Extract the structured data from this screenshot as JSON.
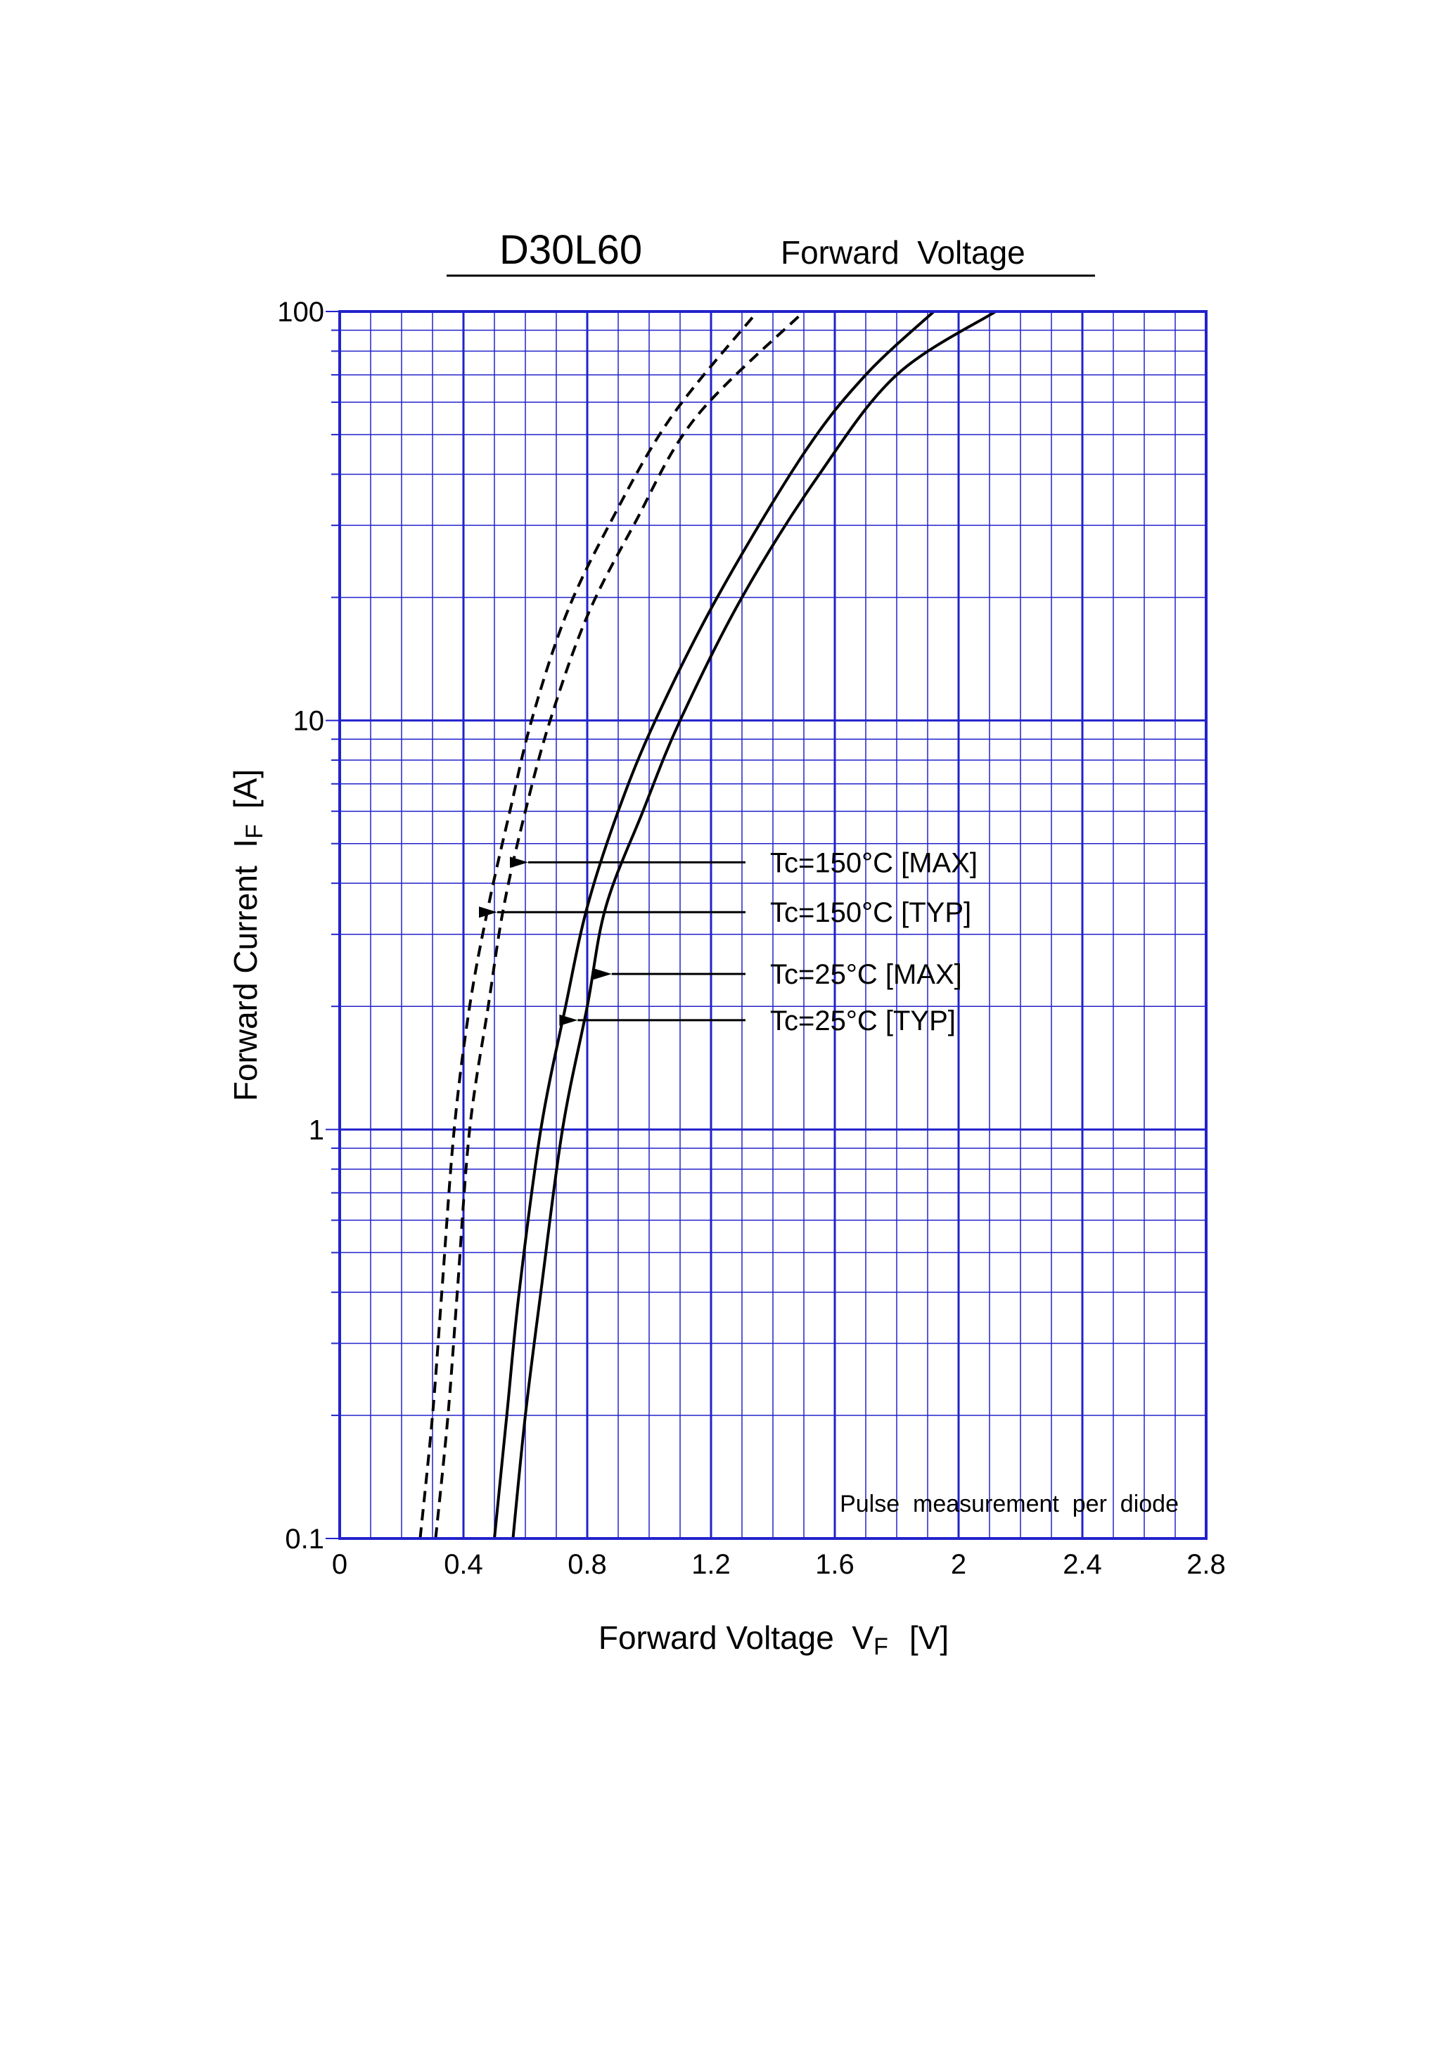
{
  "header": {
    "part_number": "D30L60",
    "subtitle": "Forward  Voltage"
  },
  "chart_data": {
    "type": "line",
    "title": "D30L60",
    "subtitle": "Forward  Voltage",
    "xlabel": {
      "main": "Forward Voltage  V",
      "sub": "F",
      "unit": "[V]"
    },
    "ylabel": {
      "main": "Forward Current  I",
      "sub": "F",
      "unit": "[A]"
    },
    "xlim": [
      0,
      2.8
    ],
    "ylim": [
      0.1,
      100
    ],
    "yscale": "log",
    "grid": true,
    "x_ticks": [
      "0",
      "0.4",
      "0.8",
      "1.2",
      "1.6",
      "2",
      "2.4",
      "2.8"
    ],
    "y_ticks": [
      "0.1",
      "1",
      "10",
      "100"
    ],
    "note": "Pulse  measurement  per  diode",
    "colors": {
      "grid": "#2222cc",
      "curve": "#000000"
    },
    "series": [
      {
        "name": "Tc=150°C [MAX]",
        "style": "dashed",
        "points": [
          [
            0.31,
            0.1
          ],
          [
            0.35,
            0.2
          ],
          [
            0.38,
            0.4
          ],
          [
            0.42,
            1
          ],
          [
            0.48,
            2
          ],
          [
            0.53,
            3.5
          ],
          [
            0.6,
            6
          ],
          [
            0.68,
            10
          ],
          [
            0.8,
            18
          ],
          [
            0.95,
            30
          ],
          [
            1.15,
            55
          ],
          [
            1.5,
            100
          ]
        ]
      },
      {
        "name": "Tc=150°C [TYP]",
        "style": "dashed",
        "points": [
          [
            0.26,
            0.1
          ],
          [
            0.3,
            0.2
          ],
          [
            0.33,
            0.4
          ],
          [
            0.37,
            1
          ],
          [
            0.42,
            2
          ],
          [
            0.48,
            3.5
          ],
          [
            0.55,
            6
          ],
          [
            0.62,
            10
          ],
          [
            0.73,
            18
          ],
          [
            0.87,
            30
          ],
          [
            1.07,
            55
          ],
          [
            1.35,
            100
          ]
        ]
      },
      {
        "name": "Tc=25°C [MAX]",
        "style": "solid",
        "points": [
          [
            0.56,
            0.1
          ],
          [
            0.6,
            0.2
          ],
          [
            0.65,
            0.4
          ],
          [
            0.72,
            1
          ],
          [
            0.8,
            2
          ],
          [
            0.86,
            3.5
          ],
          [
            0.98,
            6
          ],
          [
            1.1,
            10
          ],
          [
            1.3,
            20
          ],
          [
            1.55,
            40
          ],
          [
            1.8,
            70
          ],
          [
            2.12,
            100
          ]
        ]
      },
      {
        "name": "Tc=25°C [TYP]",
        "style": "solid",
        "points": [
          [
            0.5,
            0.1
          ],
          [
            0.54,
            0.2
          ],
          [
            0.58,
            0.4
          ],
          [
            0.65,
            1
          ],
          [
            0.73,
            2
          ],
          [
            0.8,
            3.5
          ],
          [
            0.9,
            6
          ],
          [
            1.02,
            10
          ],
          [
            1.22,
            20
          ],
          [
            1.5,
            45
          ],
          [
            1.7,
            70
          ],
          [
            1.92,
            100
          ]
        ]
      }
    ],
    "annotations": [
      {
        "text": "Tc=150°C [MAX]",
        "target": [
          0.6,
          4.5
        ]
      },
      {
        "text": "Tc=150°C [TYP]",
        "target": [
          0.5,
          3.4
        ]
      },
      {
        "text": "Tc=25°C [MAX]",
        "target": [
          0.87,
          2.4
        ]
      },
      {
        "text": "Tc=25°C [TYP]",
        "target": [
          0.76,
          1.85
        ]
      }
    ]
  }
}
